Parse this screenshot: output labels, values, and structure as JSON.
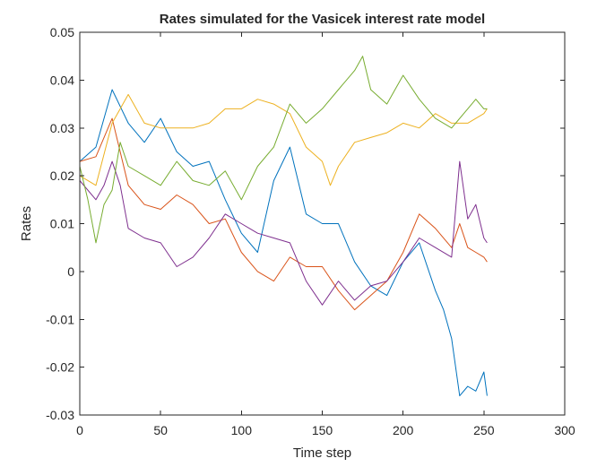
{
  "chart_data": {
    "type": "line",
    "title": "Rates simulated for the Vasicek interest rate model",
    "xlabel": "Time step",
    "ylabel": "Rates",
    "xlim": [
      0,
      300
    ],
    "ylim": [
      -0.03,
      0.05
    ],
    "xticks": [
      0,
      50,
      100,
      150,
      200,
      250,
      300
    ],
    "xtick_labels": [
      "0",
      "50",
      "100",
      "150",
      "200",
      "250",
      "300"
    ],
    "yticks": [
      -0.03,
      -0.02,
      -0.01,
      0,
      0.01,
      0.02,
      0.03,
      0.04,
      0.05
    ],
    "ytick_labels": [
      "-0.03",
      "-0.02",
      "-0.01",
      "0",
      "0.01",
      "0.02",
      "0.03",
      "0.04",
      "0.05"
    ],
    "grid": false,
    "legend": "none",
    "series": [
      {
        "color": "#0072BD",
        "x": [
          0,
          10,
          20,
          30,
          40,
          50,
          60,
          70,
          80,
          90,
          100,
          110,
          120,
          130,
          140,
          150,
          160,
          170,
          180,
          190,
          200,
          210,
          220,
          225,
          230,
          235,
          240,
          245,
          250,
          252
        ],
        "y": [
          0.023,
          0.026,
          0.038,
          0.031,
          0.027,
          0.032,
          0.025,
          0.022,
          0.023,
          0.015,
          0.008,
          0.004,
          0.019,
          0.026,
          0.012,
          0.01,
          0.01,
          0.002,
          -0.003,
          -0.005,
          0.002,
          0.006,
          -0.004,
          -0.008,
          -0.014,
          -0.026,
          -0.024,
          -0.025,
          -0.021,
          -0.026
        ]
      },
      {
        "color": "#D95319",
        "x": [
          0,
          10,
          20,
          30,
          40,
          50,
          60,
          70,
          80,
          90,
          100,
          110,
          120,
          130,
          140,
          150,
          160,
          170,
          180,
          190,
          200,
          210,
          220,
          230,
          235,
          240,
          245,
          250,
          252
        ],
        "y": [
          0.023,
          0.024,
          0.032,
          0.018,
          0.014,
          0.013,
          0.016,
          0.014,
          0.01,
          0.011,
          0.004,
          0.0,
          -0.002,
          0.003,
          0.001,
          0.001,
          -0.004,
          -0.008,
          -0.005,
          -0.002,
          0.004,
          0.012,
          0.009,
          0.005,
          0.01,
          0.005,
          0.004,
          0.003,
          0.002
        ]
      },
      {
        "color": "#EDB120",
        "x": [
          0,
          10,
          20,
          30,
          40,
          50,
          60,
          70,
          80,
          90,
          100,
          110,
          120,
          130,
          140,
          150,
          155,
          160,
          170,
          180,
          190,
          200,
          210,
          220,
          230,
          240,
          250,
          252
        ],
        "y": [
          0.02,
          0.018,
          0.031,
          0.037,
          0.031,
          0.03,
          0.03,
          0.03,
          0.031,
          0.034,
          0.034,
          0.036,
          0.035,
          0.033,
          0.026,
          0.023,
          0.018,
          0.022,
          0.027,
          0.028,
          0.029,
          0.031,
          0.03,
          0.033,
          0.031,
          0.031,
          0.033,
          0.034
        ]
      },
      {
        "color": "#7E2F8E",
        "x": [
          0,
          10,
          15,
          20,
          25,
          30,
          40,
          50,
          60,
          70,
          80,
          90,
          100,
          110,
          120,
          130,
          140,
          150,
          160,
          170,
          180,
          190,
          200,
          210,
          220,
          230,
          235,
          240,
          245,
          250,
          252
        ],
        "y": [
          0.019,
          0.015,
          0.018,
          0.023,
          0.018,
          0.009,
          0.007,
          0.006,
          0.001,
          0.003,
          0.007,
          0.012,
          0.01,
          0.008,
          0.007,
          0.006,
          -0.002,
          -0.007,
          -0.002,
          -0.006,
          -0.003,
          -0.002,
          0.002,
          0.007,
          0.005,
          0.003,
          0.023,
          0.011,
          0.014,
          0.007,
          0.006
        ]
      },
      {
        "color": "#77AC30",
        "x": [
          0,
          5,
          10,
          15,
          20,
          25,
          30,
          40,
          50,
          60,
          70,
          80,
          90,
          100,
          110,
          120,
          130,
          140,
          150,
          160,
          170,
          175,
          180,
          190,
          200,
          210,
          220,
          230,
          240,
          245,
          250,
          252
        ],
        "y": [
          0.022,
          0.015,
          0.006,
          0.014,
          0.017,
          0.027,
          0.022,
          0.02,
          0.018,
          0.023,
          0.019,
          0.018,
          0.021,
          0.015,
          0.022,
          0.026,
          0.035,
          0.031,
          0.034,
          0.038,
          0.042,
          0.045,
          0.038,
          0.035,
          0.041,
          0.036,
          0.032,
          0.03,
          0.034,
          0.036,
          0.034,
          0.034
        ]
      }
    ]
  }
}
